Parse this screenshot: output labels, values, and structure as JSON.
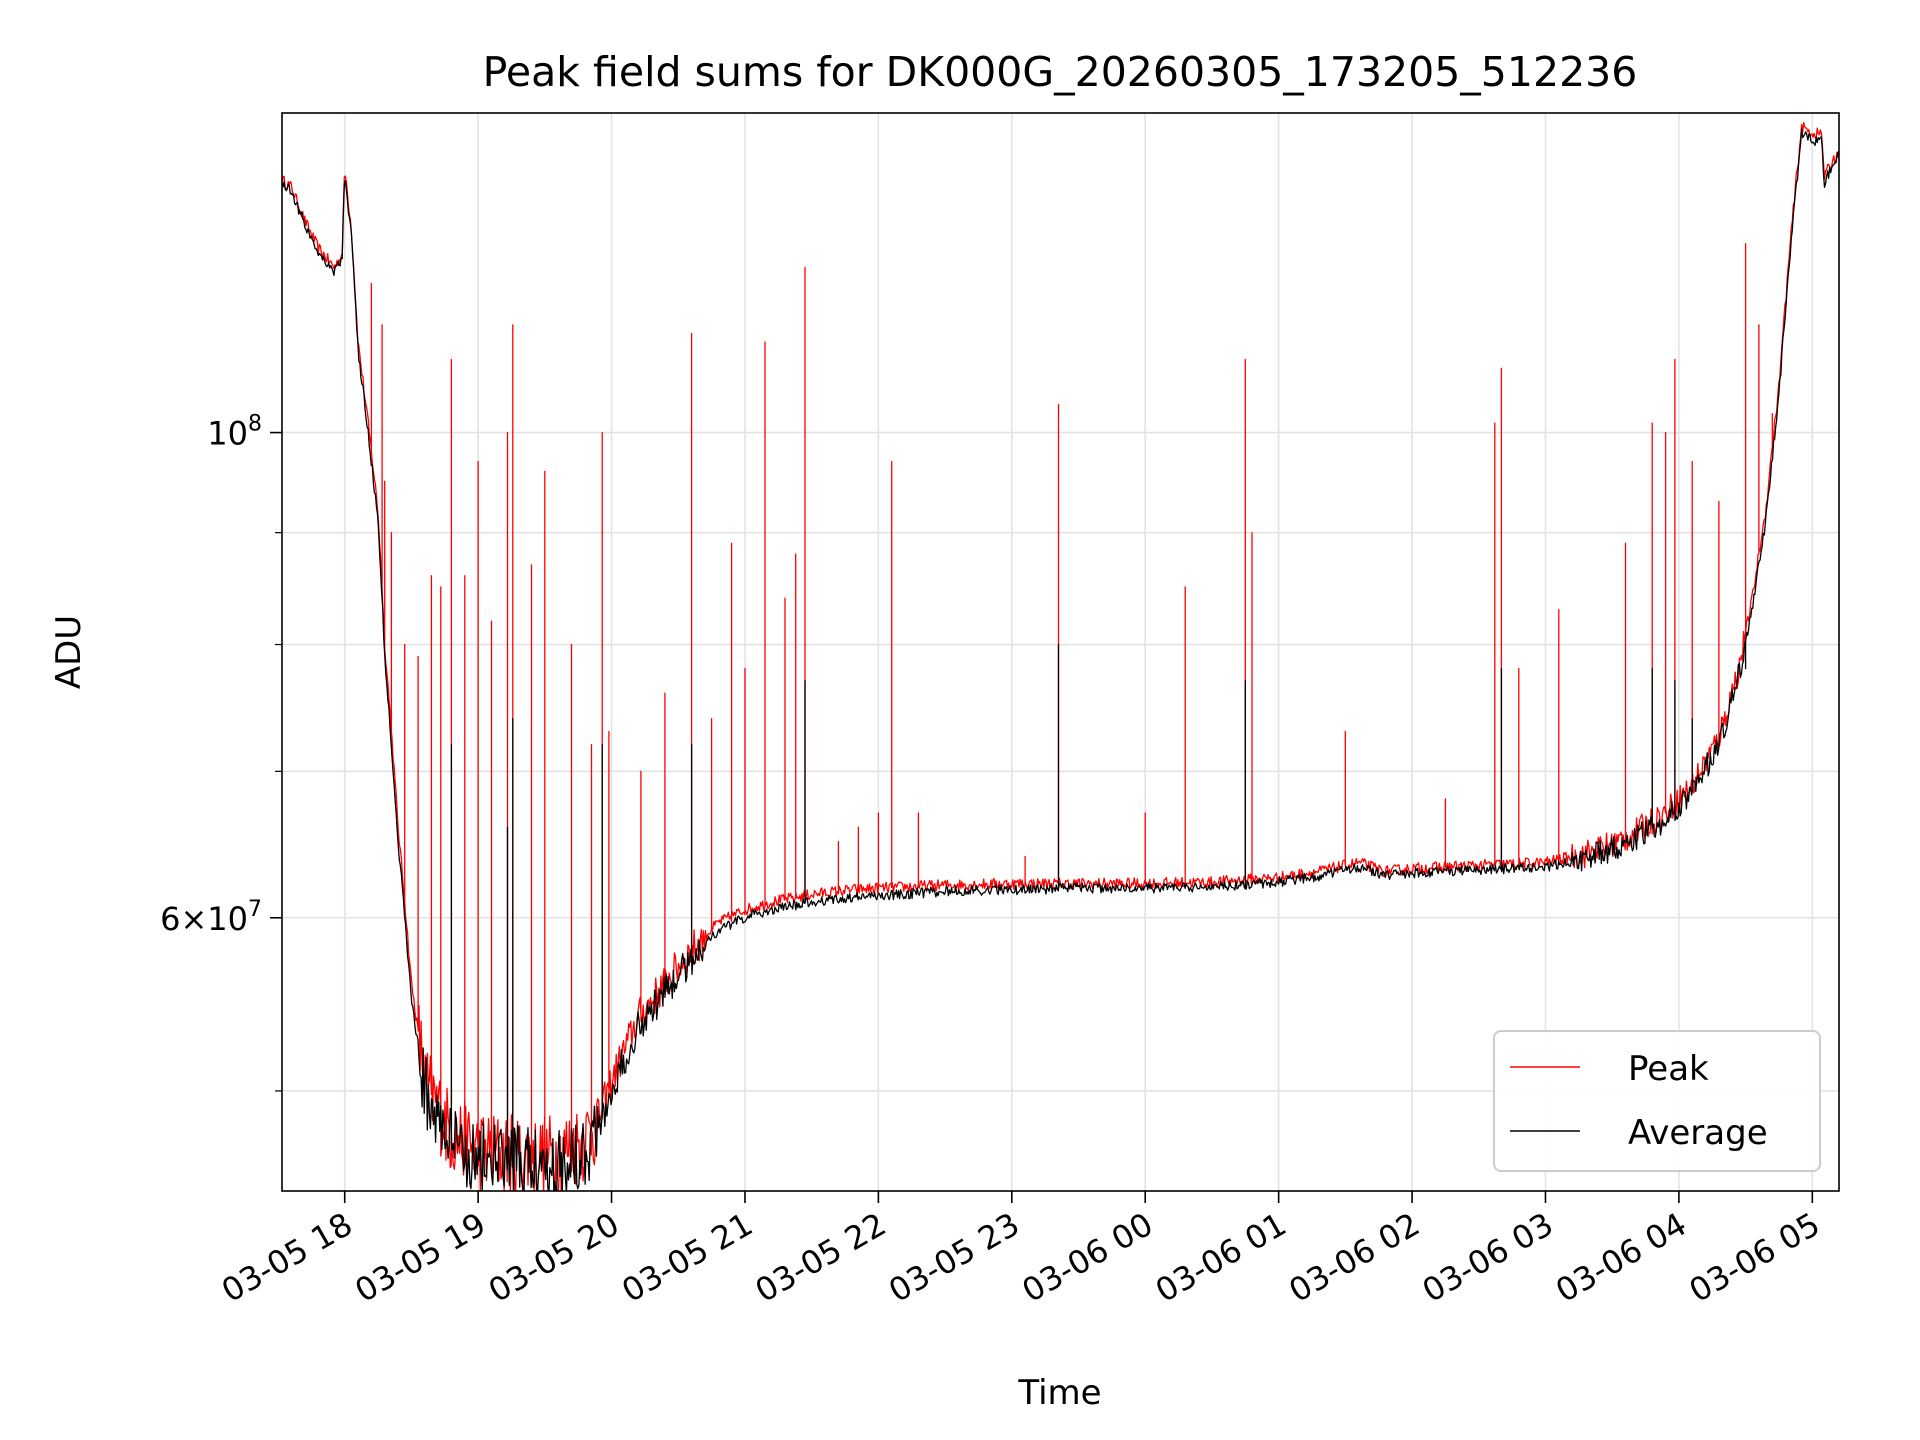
{
  "chart_data": {
    "type": "line",
    "title": "Peak field sums for DK000G_20260305_173205_512236",
    "xlabel": "Time",
    "ylabel": "ADU",
    "x_unit": "hours since 03-05 00:00",
    "xlim": [
      17.53,
      29.2
    ],
    "ylim": [
      45000000,
      140000000
    ],
    "yscale": "log",
    "grid": true,
    "legend_position": "lower right",
    "x_ticks": [
      {
        "value": 18,
        "label": "03-05 18"
      },
      {
        "value": 19,
        "label": "03-05 19"
      },
      {
        "value": 20,
        "label": "03-05 20"
      },
      {
        "value": 21,
        "label": "03-05 21"
      },
      {
        "value": 22,
        "label": "03-05 22"
      },
      {
        "value": 23,
        "label": "03-05 23"
      },
      {
        "value": 24,
        "label": "03-06 00"
      },
      {
        "value": 25,
        "label": "03-06 01"
      },
      {
        "value": 26,
        "label": "03-06 02"
      },
      {
        "value": 27,
        "label": "03-06 03"
      },
      {
        "value": 28,
        "label": "03-06 04"
      },
      {
        "value": 29,
        "label": "03-06 05"
      }
    ],
    "y_major_ticks": [
      {
        "value": 100000000,
        "label_base": "10",
        "label_exp": "8",
        "label_prefix": ""
      },
      {
        "value": 60000000,
        "label_base": "10",
        "label_exp": "7",
        "label_prefix": "6×"
      }
    ],
    "y_minor_ticks": [
      50000000,
      70000000,
      80000000,
      90000000
    ],
    "series": [
      {
        "name": "Peak",
        "color": "#ff0000",
        "baseline": [
          [
            17.53,
            130500000
          ],
          [
            17.6,
            129500000
          ],
          [
            17.7,
            125000000
          ],
          [
            17.8,
            121500000
          ],
          [
            17.92,
            119000000
          ],
          [
            17.98,
            120500000
          ],
          [
            18.0,
            132000000
          ],
          [
            18.05,
            124000000
          ],
          [
            18.1,
            110000000
          ],
          [
            18.2,
            98000000
          ],
          [
            18.25,
            92000000
          ],
          [
            18.3,
            80000000
          ],
          [
            18.4,
            66000000
          ],
          [
            18.5,
            56000000
          ],
          [
            18.6,
            50500000
          ],
          [
            18.8,
            47800000
          ],
          [
            19.0,
            47000000
          ],
          [
            19.2,
            46800000
          ],
          [
            19.4,
            46700000
          ],
          [
            19.6,
            46800000
          ],
          [
            19.8,
            47500000
          ],
          [
            19.9,
            48500000
          ],
          [
            20.0,
            50500000
          ],
          [
            20.2,
            54000000
          ],
          [
            20.4,
            56000000
          ],
          [
            20.6,
            58000000
          ],
          [
            20.8,
            59700000
          ],
          [
            21.0,
            60500000
          ],
          [
            21.2,
            61000000
          ],
          [
            21.5,
            61500000
          ],
          [
            21.8,
            61800000
          ],
          [
            22.0,
            61900000
          ],
          [
            22.5,
            62100000
          ],
          [
            23.0,
            62200000
          ],
          [
            23.5,
            62200000
          ],
          [
            24.0,
            62200000
          ],
          [
            24.5,
            62300000
          ],
          [
            25.0,
            62600000
          ],
          [
            25.3,
            63000000
          ],
          [
            25.6,
            63600000
          ],
          [
            25.8,
            63000000
          ],
          [
            26.0,
            63200000
          ],
          [
            26.5,
            63400000
          ],
          [
            27.0,
            63600000
          ],
          [
            27.3,
            64200000
          ],
          [
            27.6,
            65200000
          ],
          [
            27.9,
            67000000
          ],
          [
            28.1,
            69000000
          ],
          [
            28.3,
            72500000
          ],
          [
            28.45,
            78000000
          ],
          [
            28.55,
            84000000
          ],
          [
            28.65,
            92000000
          ],
          [
            28.75,
            105000000
          ],
          [
            28.85,
            125000000
          ],
          [
            28.92,
            138000000
          ],
          [
            29.0,
            137000000
          ],
          [
            29.07,
            137000000
          ],
          [
            29.09,
            131000000
          ],
          [
            29.15,
            133000000
          ],
          [
            29.2,
            134500000
          ]
        ],
        "spikes": [
          [
            18.2,
            117000000
          ],
          [
            18.28,
            112000000
          ],
          [
            18.3,
            95000000
          ],
          [
            18.35,
            90000000
          ],
          [
            18.45,
            80000000
          ],
          [
            18.55,
            79000000
          ],
          [
            18.65,
            86000000
          ],
          [
            18.72,
            85000000
          ],
          [
            18.8,
            108000000
          ],
          [
            18.9,
            86000000
          ],
          [
            19.0,
            97000000
          ],
          [
            19.1,
            82000000
          ],
          [
            19.22,
            100000000
          ],
          [
            19.26,
            112000000
          ],
          [
            19.4,
            87000000
          ],
          [
            19.5,
            96000000
          ],
          [
            19.7,
            80000000
          ],
          [
            19.85,
            72000000
          ],
          [
            19.93,
            100000000
          ],
          [
            19.98,
            73000000
          ],
          [
            20.22,
            70000000
          ],
          [
            20.4,
            76000000
          ],
          [
            20.6,
            111000000
          ],
          [
            20.75,
            74000000
          ],
          [
            20.9,
            89000000
          ],
          [
            21.0,
            78000000
          ],
          [
            21.15,
            110000000
          ],
          [
            21.3,
            84000000
          ],
          [
            21.38,
            88000000
          ],
          [
            21.45,
            119000000
          ],
          [
            21.7,
            65000000
          ],
          [
            21.85,
            66000000
          ],
          [
            22.0,
            67000000
          ],
          [
            22.1,
            97000000
          ],
          [
            22.3,
            67000000
          ],
          [
            23.1,
            64000000
          ],
          [
            23.35,
            103000000
          ],
          [
            24.0,
            67000000
          ],
          [
            24.3,
            85000000
          ],
          [
            24.75,
            108000000
          ],
          [
            24.8,
            90000000
          ],
          [
            25.5,
            73000000
          ],
          [
            26.25,
            68000000
          ],
          [
            26.62,
            101000000
          ],
          [
            26.67,
            107000000
          ],
          [
            26.8,
            78000000
          ],
          [
            27.1,
            83000000
          ],
          [
            27.6,
            89000000
          ],
          [
            27.8,
            101000000
          ],
          [
            27.9,
            100000000
          ],
          [
            27.97,
            108000000
          ],
          [
            28.1,
            97000000
          ],
          [
            28.3,
            93000000
          ],
          [
            28.5,
            122000000
          ],
          [
            28.6,
            112000000
          ],
          [
            28.7,
            102000000
          ]
        ]
      },
      {
        "name": "Average",
        "color": "#000000",
        "baseline": [
          [
            17.53,
            130000000
          ],
          [
            17.6,
            129000000
          ],
          [
            17.7,
            124500000
          ],
          [
            17.8,
            121000000
          ],
          [
            17.92,
            118500000
          ],
          [
            17.98,
            120000000
          ],
          [
            18.0,
            131000000
          ],
          [
            18.05,
            123000000
          ],
          [
            18.1,
            109000000
          ],
          [
            18.2,
            97000000
          ],
          [
            18.25,
            91000000
          ],
          [
            18.3,
            79000000
          ],
          [
            18.4,
            65000000
          ],
          [
            18.5,
            55000000
          ],
          [
            18.6,
            50000000
          ],
          [
            18.8,
            47300000
          ],
          [
            19.0,
            46600000
          ],
          [
            19.2,
            46400000
          ],
          [
            19.4,
            46300000
          ],
          [
            19.6,
            46400000
          ],
          [
            19.8,
            47100000
          ],
          [
            19.9,
            48000000
          ],
          [
            20.0,
            50000000
          ],
          [
            20.2,
            53500000
          ],
          [
            20.4,
            55500000
          ],
          [
            20.6,
            57500000
          ],
          [
            20.8,
            59200000
          ],
          [
            21.0,
            60000000
          ],
          [
            21.2,
            60500000
          ],
          [
            21.5,
            61000000
          ],
          [
            21.8,
            61300000
          ],
          [
            22.0,
            61400000
          ],
          [
            22.5,
            61700000
          ],
          [
            23.0,
            61800000
          ],
          [
            23.5,
            61900000
          ],
          [
            24.0,
            61900000
          ],
          [
            24.5,
            62000000
          ],
          [
            25.0,
            62300000
          ],
          [
            25.3,
            62700000
          ],
          [
            25.6,
            63300000
          ],
          [
            25.8,
            62700000
          ],
          [
            26.0,
            62900000
          ],
          [
            26.5,
            63100000
          ],
          [
            27.0,
            63300000
          ],
          [
            27.3,
            63900000
          ],
          [
            27.6,
            64800000
          ],
          [
            27.9,
            66500000
          ],
          [
            28.1,
            68500000
          ],
          [
            28.3,
            72000000
          ],
          [
            28.45,
            77500000
          ],
          [
            28.55,
            83000000
          ],
          [
            28.65,
            91000000
          ],
          [
            28.75,
            104000000
          ],
          [
            28.85,
            124000000
          ],
          [
            28.92,
            137000000
          ],
          [
            29.0,
            136000000
          ],
          [
            29.07,
            136000000
          ],
          [
            29.09,
            130000000
          ],
          [
            29.15,
            132500000
          ],
          [
            29.2,
            134000000
          ]
        ],
        "spikes": [
          [
            18.8,
            72000000
          ],
          [
            19.22,
            66000000
          ],
          [
            19.26,
            74000000
          ],
          [
            19.93,
            72000000
          ],
          [
            20.6,
            72000000
          ],
          [
            21.45,
            77000000
          ],
          [
            23.35,
            80000000
          ],
          [
            24.75,
            77000000
          ],
          [
            26.67,
            78000000
          ],
          [
            27.8,
            78000000
          ],
          [
            27.97,
            77000000
          ],
          [
            28.5,
            78000000
          ],
          [
            28.1,
            74000000
          ]
        ]
      }
    ]
  }
}
